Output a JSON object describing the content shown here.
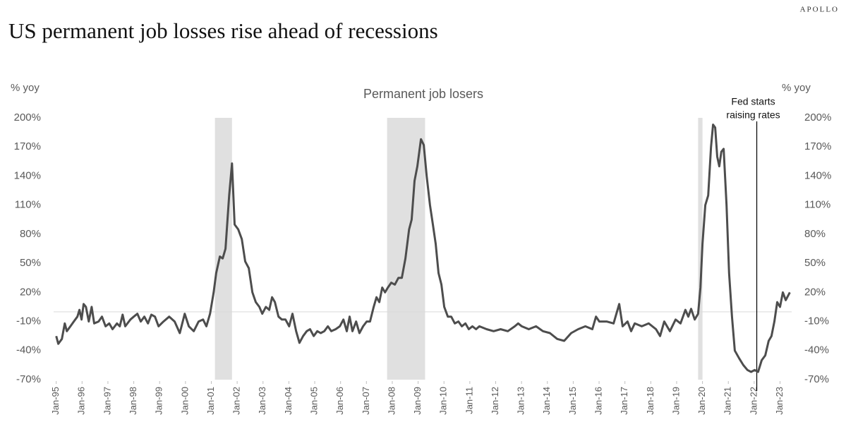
{
  "brand": "APOLLO",
  "chart_data": {
    "type": "line",
    "title": "US permanent job losses rise ahead of recessions",
    "subtitle": "Permanent job losers",
    "ylabel": "% yoy",
    "y2label": "% yoy",
    "xlim": [
      1994.9,
      2023.45
    ],
    "xticks": [
      {
        "value": 1995,
        "label": "Jan-95"
      },
      {
        "value": 1996,
        "label": "Jan-96"
      },
      {
        "value": 1997,
        "label": "Jan-97"
      },
      {
        "value": 1998,
        "label": "Jan-98"
      },
      {
        "value": 1999,
        "label": "Jan-99"
      },
      {
        "value": 2000,
        "label": "Jan-00"
      },
      {
        "value": 2001,
        "label": "Jan-01"
      },
      {
        "value": 2002,
        "label": "Jan-02"
      },
      {
        "value": 2003,
        "label": "Jan-03"
      },
      {
        "value": 2004,
        "label": "Jan-04"
      },
      {
        "value": 2005,
        "label": "Jan-05"
      },
      {
        "value": 2006,
        "label": "Jan-06"
      },
      {
        "value": 2007,
        "label": "Jan-07"
      },
      {
        "value": 2008,
        "label": "Jan-08"
      },
      {
        "value": 2009,
        "label": "Jan-09"
      },
      {
        "value": 2010,
        "label": "Jan-10"
      },
      {
        "value": 2011,
        "label": "Jan-11"
      },
      {
        "value": 2012,
        "label": "Jan-12"
      },
      {
        "value": 2013,
        "label": "Jan-13"
      },
      {
        "value": 2014,
        "label": "Jan-14"
      },
      {
        "value": 2015,
        "label": "Jan-15"
      },
      {
        "value": 2016,
        "label": "Jan-16"
      },
      {
        "value": 2017,
        "label": "Jan-17"
      },
      {
        "value": 2018,
        "label": "Jan-18"
      },
      {
        "value": 2019,
        "label": "Jan-19"
      },
      {
        "value": 2020,
        "label": "Jan-20"
      },
      {
        "value": 2021,
        "label": "Jan-21"
      },
      {
        "value": 2022,
        "label": "Jan-22"
      },
      {
        "value": 2023,
        "label": "Jan-23"
      }
    ],
    "ylim": [
      -70,
      200
    ],
    "yticks": [
      {
        "value": 200,
        "label": "200%"
      },
      {
        "value": 170,
        "label": "170%"
      },
      {
        "value": 140,
        "label": "140%"
      },
      {
        "value": 110,
        "label": "110%"
      },
      {
        "value": 80,
        "label": "80%"
      },
      {
        "value": 50,
        "label": "50%"
      },
      {
        "value": 20,
        "label": "20%"
      },
      {
        "value": -10,
        "label": "-10%"
      },
      {
        "value": -40,
        "label": "-40%"
      },
      {
        "value": -70,
        "label": "-70%"
      }
    ],
    "y2lim": [
      -70,
      200
    ],
    "y2ticks": [
      {
        "value": 200,
        "label": "200%"
      },
      {
        "value": 170,
        "label": "170%"
      },
      {
        "value": 140,
        "label": "140%"
      },
      {
        "value": 110,
        "label": "110%"
      },
      {
        "value": 80,
        "label": "80%"
      },
      {
        "value": 50,
        "label": "50%"
      },
      {
        "value": 20,
        "label": "20%"
      },
      {
        "value": -10,
        "label": "-10%"
      },
      {
        "value": -40,
        "label": "-40%"
      },
      {
        "value": -70,
        "label": "-70%"
      }
    ],
    "shaded_periods": [
      [
        2001.14,
        2001.8
      ],
      [
        2007.8,
        2009.27
      ],
      [
        2019.83,
        2020.0
      ]
    ],
    "annotation": {
      "x": 2022.1,
      "text": [
        "Fed starts",
        "raising rates"
      ]
    },
    "x": [
      1995.0,
      1995.08,
      1995.22,
      1995.33,
      1995.41,
      1995.55,
      1995.68,
      1995.82,
      1995.9,
      1995.98,
      1996.06,
      1996.15,
      1996.26,
      1996.37,
      1996.47,
      1996.64,
      1996.77,
      1996.91,
      1997.05,
      1997.18,
      1997.35,
      1997.46,
      1997.57,
      1997.67,
      1997.87,
      1998.0,
      1998.14,
      1998.27,
      1998.41,
      1998.55,
      1998.68,
      1998.82,
      1998.96,
      1999.15,
      1999.37,
      1999.58,
      1999.78,
      1999.97,
      2000.13,
      2000.32,
      2000.51,
      2000.68,
      2000.81,
      2000.95,
      2001.09,
      2001.19,
      2001.33,
      2001.44,
      2001.55,
      2001.69,
      2001.8,
      2001.9,
      2002.04,
      2002.18,
      2002.31,
      2002.45,
      2002.59,
      2002.72,
      2002.86,
      2002.97,
      2003.11,
      2003.24,
      2003.35,
      2003.46,
      2003.6,
      2003.73,
      2003.87,
      2004.01,
      2004.14,
      2004.28,
      2004.41,
      2004.55,
      2004.69,
      2004.82,
      2004.96,
      2005.1,
      2005.23,
      2005.37,
      2005.51,
      2005.64,
      2005.81,
      2005.97,
      2006.11,
      2006.24,
      2006.35,
      2006.46,
      2006.6,
      2006.73,
      2006.87,
      2007.01,
      2007.14,
      2007.28,
      2007.39,
      2007.5,
      2007.61,
      2007.72,
      2007.83,
      2007.96,
      2008.1,
      2008.24,
      2008.37,
      2008.51,
      2008.65,
      2008.75,
      2008.86,
      2008.97,
      2009.11,
      2009.22,
      2009.33,
      2009.46,
      2009.57,
      2009.68,
      2009.79,
      2009.9,
      2010.01,
      2010.15,
      2010.28,
      2010.42,
      2010.56,
      2010.69,
      2010.83,
      2010.96,
      2011.1,
      2011.24,
      2011.37,
      2011.65,
      2011.92,
      2012.19,
      2012.47,
      2012.74,
      2012.87,
      2013.01,
      2013.28,
      2013.56,
      2013.83,
      2014.1,
      2014.38,
      2014.65,
      2014.92,
      2015.19,
      2015.47,
      2015.74,
      2015.88,
      2016.01,
      2016.29,
      2016.56,
      2016.78,
      2016.91,
      2017.1,
      2017.24,
      2017.38,
      2017.65,
      2017.92,
      2018.2,
      2018.36,
      2018.52,
      2018.74,
      2018.96,
      2019.15,
      2019.34,
      2019.45,
      2019.56,
      2019.7,
      2019.83,
      2019.92,
      2020.0,
      2020.11,
      2020.22,
      2020.33,
      2020.41,
      2020.49,
      2020.57,
      2020.65,
      2020.73,
      2020.82,
      2020.93,
      2021.03,
      2021.14,
      2021.25,
      2021.42,
      2021.58,
      2021.74,
      2021.88,
      2022.02,
      2022.15,
      2022.29,
      2022.43,
      2022.56,
      2022.67,
      2022.78,
      2022.89,
      2023.0,
      2023.11,
      2023.22,
      2023.38
    ],
    "series": [
      {
        "name": "Permanent job losers",
        "color": "#4d4d4d",
        "values": [
          -25,
          -33,
          -28,
          -12,
          -20,
          -15,
          -10,
          -5,
          2,
          -8,
          8,
          5,
          -10,
          5,
          -12,
          -10,
          -5,
          -15,
          -12,
          -18,
          -12,
          -15,
          -3,
          -15,
          -8,
          -5,
          -2,
          -10,
          -5,
          -12,
          -3,
          -5,
          -15,
          -10,
          -5,
          -10,
          -22,
          -2,
          -15,
          -20,
          -10,
          -8,
          -15,
          -2,
          20,
          40,
          57,
          55,
          65,
          120,
          153,
          90,
          85,
          75,
          52,
          45,
          20,
          10,
          5,
          -2,
          5,
          2,
          15,
          10,
          -5,
          -8,
          -8,
          -15,
          -2,
          -20,
          -32,
          -25,
          -20,
          -18,
          -25,
          -20,
          -22,
          -20,
          -15,
          -20,
          -18,
          -15,
          -8,
          -20,
          -5,
          -20,
          -10,
          -22,
          -15,
          -10,
          -10,
          5,
          15,
          10,
          25,
          20,
          25,
          30,
          28,
          35,
          35,
          55,
          85,
          95,
          135,
          150,
          178,
          172,
          140,
          110,
          90,
          70,
          40,
          28,
          5,
          -5,
          -5,
          -12,
          -10,
          -15,
          -12,
          -18,
          -15,
          -18,
          -15,
          -18,
          -20,
          -18,
          -20,
          -15,
          -12,
          -15,
          -18,
          -15,
          -20,
          -22,
          -28,
          -30,
          -22,
          -18,
          -15,
          -18,
          -5,
          -10,
          -10,
          -12,
          8,
          -15,
          -10,
          -20,
          -12,
          -15,
          -12,
          -18,
          -25,
          -10,
          -20,
          -8,
          -12,
          2,
          -5,
          3,
          -8,
          -2,
          25,
          70,
          110,
          120,
          170,
          193,
          190,
          160,
          150,
          165,
          168,
          110,
          40,
          -5,
          -40,
          -48,
          -55,
          -60,
          -62,
          -60,
          -62,
          -50,
          -45,
          -30,
          -25,
          -10,
          10,
          5,
          20,
          12,
          20
        ]
      }
    ]
  }
}
